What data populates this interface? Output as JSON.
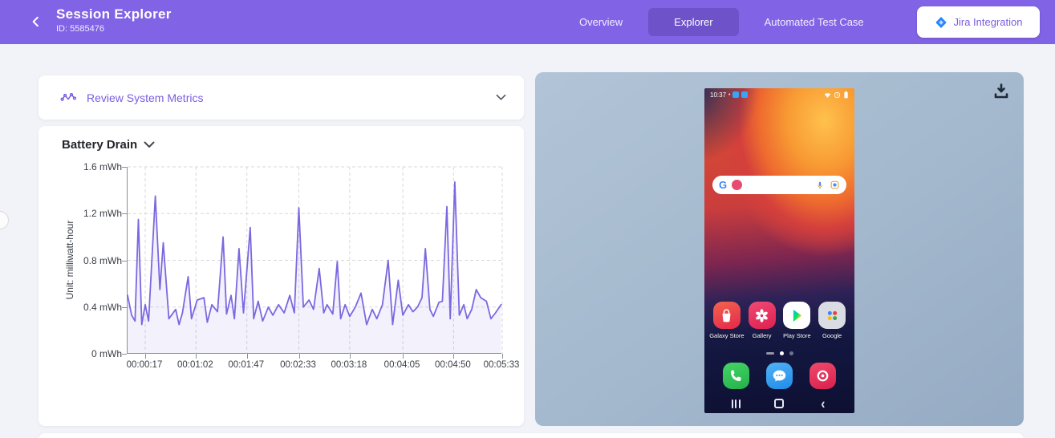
{
  "header": {
    "title": "Session Explorer",
    "session_id": "ID: 5585476",
    "nav": {
      "overview": "Overview",
      "explorer": "Explorer",
      "automated": "Automated Test Case"
    },
    "jira_label": "Jira Integration",
    "back_icon": "chevron-left-icon",
    "accent_color": "#8163e6",
    "active_tab_color": "#6d52ca"
  },
  "metrics_panel": {
    "title": "Review System Metrics",
    "icon": "pulse-line-icon",
    "collapse_icon": "chevron-down-icon"
  },
  "chart_card": {
    "title": "Battery Drain",
    "selector_icon": "chevron-down-icon"
  },
  "chart_data": {
    "type": "area",
    "title": "Battery Drain",
    "ylabel": "Unit: milliwatt-hour",
    "xlabel": "",
    "ylim": [
      0,
      1.6
    ],
    "xlim": [
      1.4,
      333
    ],
    "grid": true,
    "line_color": "#7b68e0",
    "area_color": "rgba(124,105,224,0.09)",
    "yticks": [
      {
        "v": 0,
        "label": "0 mWh"
      },
      {
        "v": 0.4,
        "label": "0.4 mWh"
      },
      {
        "v": 0.8,
        "label": "0.8 mWh"
      },
      {
        "v": 1.2,
        "label": "1.2 mWh"
      },
      {
        "v": 1.6,
        "label": "1.6 mWh"
      }
    ],
    "xticks": [
      {
        "v": 17,
        "label": "00:00:17"
      },
      {
        "v": 62,
        "label": "00:01:02"
      },
      {
        "v": 107,
        "label": "00:01:47"
      },
      {
        "v": 153,
        "label": "00:02:33"
      },
      {
        "v": 198,
        "label": "00:03:18"
      },
      {
        "v": 245,
        "label": "00:04:05"
      },
      {
        "v": 290,
        "label": "00:04:50"
      },
      {
        "v": 333,
        "label": "00:05:33"
      }
    ],
    "points": [
      [
        1.4,
        0.5
      ],
      [
        5,
        0.33
      ],
      [
        8,
        0.28
      ],
      [
        11,
        1.15
      ],
      [
        14,
        0.25
      ],
      [
        17,
        0.42
      ],
      [
        20,
        0.28
      ],
      [
        26,
        1.35
      ],
      [
        30,
        0.55
      ],
      [
        33,
        0.95
      ],
      [
        38,
        0.3
      ],
      [
        44,
        0.38
      ],
      [
        47,
        0.25
      ],
      [
        50,
        0.35
      ],
      [
        55,
        0.66
      ],
      [
        58,
        0.3
      ],
      [
        63,
        0.46
      ],
      [
        69,
        0.48
      ],
      [
        72,
        0.27
      ],
      [
        76,
        0.42
      ],
      [
        81,
        0.36
      ],
      [
        86,
        1.0
      ],
      [
        89,
        0.34
      ],
      [
        93,
        0.5
      ],
      [
        96,
        0.3
      ],
      [
        100,
        0.9
      ],
      [
        104,
        0.35
      ],
      [
        110,
        1.08
      ],
      [
        113,
        0.3
      ],
      [
        117,
        0.45
      ],
      [
        121,
        0.28
      ],
      [
        126,
        0.4
      ],
      [
        130,
        0.33
      ],
      [
        135,
        0.42
      ],
      [
        140,
        0.35
      ],
      [
        145,
        0.5
      ],
      [
        149,
        0.35
      ],
      [
        153,
        1.25
      ],
      [
        157,
        0.4
      ],
      [
        162,
        0.46
      ],
      [
        166,
        0.38
      ],
      [
        171,
        0.73
      ],
      [
        175,
        0.35
      ],
      [
        178,
        0.42
      ],
      [
        183,
        0.34
      ],
      [
        187,
        0.79
      ],
      [
        190,
        0.3
      ],
      [
        194,
        0.42
      ],
      [
        198,
        0.32
      ],
      [
        203,
        0.4
      ],
      [
        208,
        0.52
      ],
      [
        213,
        0.25
      ],
      [
        218,
        0.38
      ],
      [
        222,
        0.3
      ],
      [
        227,
        0.42
      ],
      [
        232,
        0.8
      ],
      [
        236,
        0.25
      ],
      [
        241,
        0.63
      ],
      [
        245,
        0.33
      ],
      [
        250,
        0.42
      ],
      [
        254,
        0.36
      ],
      [
        258,
        0.4
      ],
      [
        262,
        0.48
      ],
      [
        265,
        0.9
      ],
      [
        269,
        0.38
      ],
      [
        272,
        0.32
      ],
      [
        277,
        0.44
      ],
      [
        280,
        0.45
      ],
      [
        284,
        1.26
      ],
      [
        287,
        0.3
      ],
      [
        291,
        1.47
      ],
      [
        295,
        0.33
      ],
      [
        299,
        0.42
      ],
      [
        302,
        0.3
      ],
      [
        306,
        0.38
      ],
      [
        310,
        0.55
      ],
      [
        314,
        0.48
      ],
      [
        319,
        0.45
      ],
      [
        323,
        0.3
      ],
      [
        327,
        0.35
      ],
      [
        332,
        0.42
      ]
    ]
  },
  "device_panel": {
    "download_icon": "download-icon",
    "panel_color": "#a3b8cd",
    "phone": {
      "status": {
        "time": "10:37"
      },
      "apps": [
        {
          "label": "Galaxy Store",
          "icon": "galaxy-store"
        },
        {
          "label": "Gallery",
          "icon": "gallery"
        },
        {
          "label": "Play Store",
          "icon": "play-store"
        },
        {
          "label": "Google",
          "icon": "google-folder"
        }
      ],
      "dock": [
        {
          "icon": "phone"
        },
        {
          "icon": "messages"
        },
        {
          "icon": "camera"
        }
      ],
      "navbar": [
        "recents",
        "home",
        "back"
      ]
    }
  }
}
